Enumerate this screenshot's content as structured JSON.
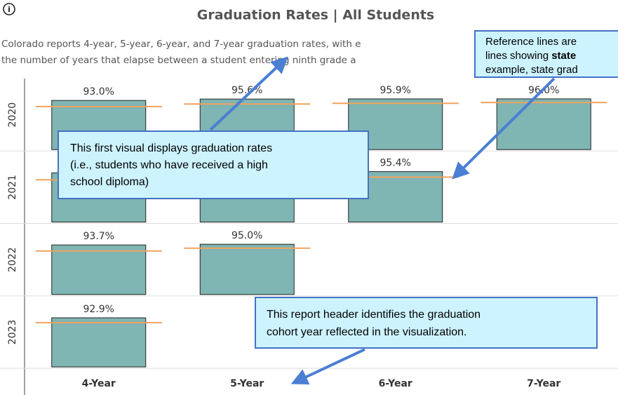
{
  "chart_data": {
    "type": "bar",
    "title": "Graduation Rates | All Students",
    "subtitle": [
      "Colorado reports 4-year, 5-year, 6-year, and 7-year graduation rates, with e",
      "the number of years that elapse between a student entering ninth grade a"
    ],
    "categories": [
      "4-Year",
      "5-Year",
      "6-Year",
      "7-Year"
    ],
    "ylim": [
      0,
      133
    ],
    "color": "#7fb5b2",
    "reference_color": "#f0a35e",
    "series": [
      {
        "name": "2020",
        "values": [
          93.0,
          95.6,
          95.9,
          96.0
        ],
        "value_labels": [
          "93.0%",
          "95.6%",
          "95.9%",
          "96.0%"
        ],
        "reference": [
          81.5,
          86.3,
          87.6,
          89.0
        ]
      },
      {
        "name": "2021",
        "values": [
          93.1,
          95.2,
          95.4,
          null
        ],
        "value_labels": [
          null,
          null,
          "95.4%",
          null
        ],
        "reference": [
          80.0,
          null,
          85.0,
          null
        ]
      },
      {
        "name": "2022",
        "values": [
          93.7,
          95.0,
          null,
          null
        ],
        "value_labels": [
          "93.7%",
          "95.0%",
          null,
          null
        ],
        "reference": [
          82.3,
          87.6,
          null,
          null
        ]
      },
      {
        "name": "2023",
        "values": [
          92.9,
          null,
          null,
          null
        ],
        "value_labels": [
          "92.9%",
          null,
          null,
          null
        ],
        "reference": [
          83.7,
          null,
          null,
          null
        ]
      }
    ]
  },
  "callouts": [
    {
      "lines": [
        "Reference lines are",
        "lines showing ",
        "state",
        "example, state grad"
      ]
    },
    {
      "lines": [
        "This first visual displays graduation rates",
        "(i.e., students who have received a high",
        "school diploma)"
      ]
    },
    {
      "lines": [
        "This report header identifies the graduation",
        "cohort year reflected in the visualization."
      ]
    }
  ]
}
